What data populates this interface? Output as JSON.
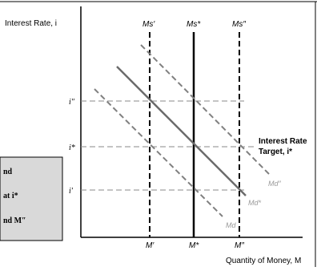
{
  "diagram": {
    "y_axis_label": "Interest Rate, i",
    "x_axis_label": "Quantity of Money, M",
    "y_ticks": [
      "i″",
      "i*",
      "i′"
    ],
    "x_ticks": [
      "M′",
      "M*",
      "M″"
    ],
    "supply_labels": [
      "Ms′",
      "Ms*",
      "Ms″"
    ],
    "demand_labels": [
      "Md",
      "Md*",
      "Md″"
    ],
    "target_label_line1": "Interest Rate",
    "target_label_line2": "Target, i*"
  },
  "overlay_box": {
    "lines": [
      "nd",
      "at i*",
      "nd M″"
    ]
  },
  "colors": {
    "axis": "#000000",
    "solid_demand": "#6b6b6b",
    "dashed_demand": "#808080",
    "guide": "#8a8a8a",
    "box_fill": "#d9d9d9",
    "label_grey": "#9a9a9a"
  }
}
